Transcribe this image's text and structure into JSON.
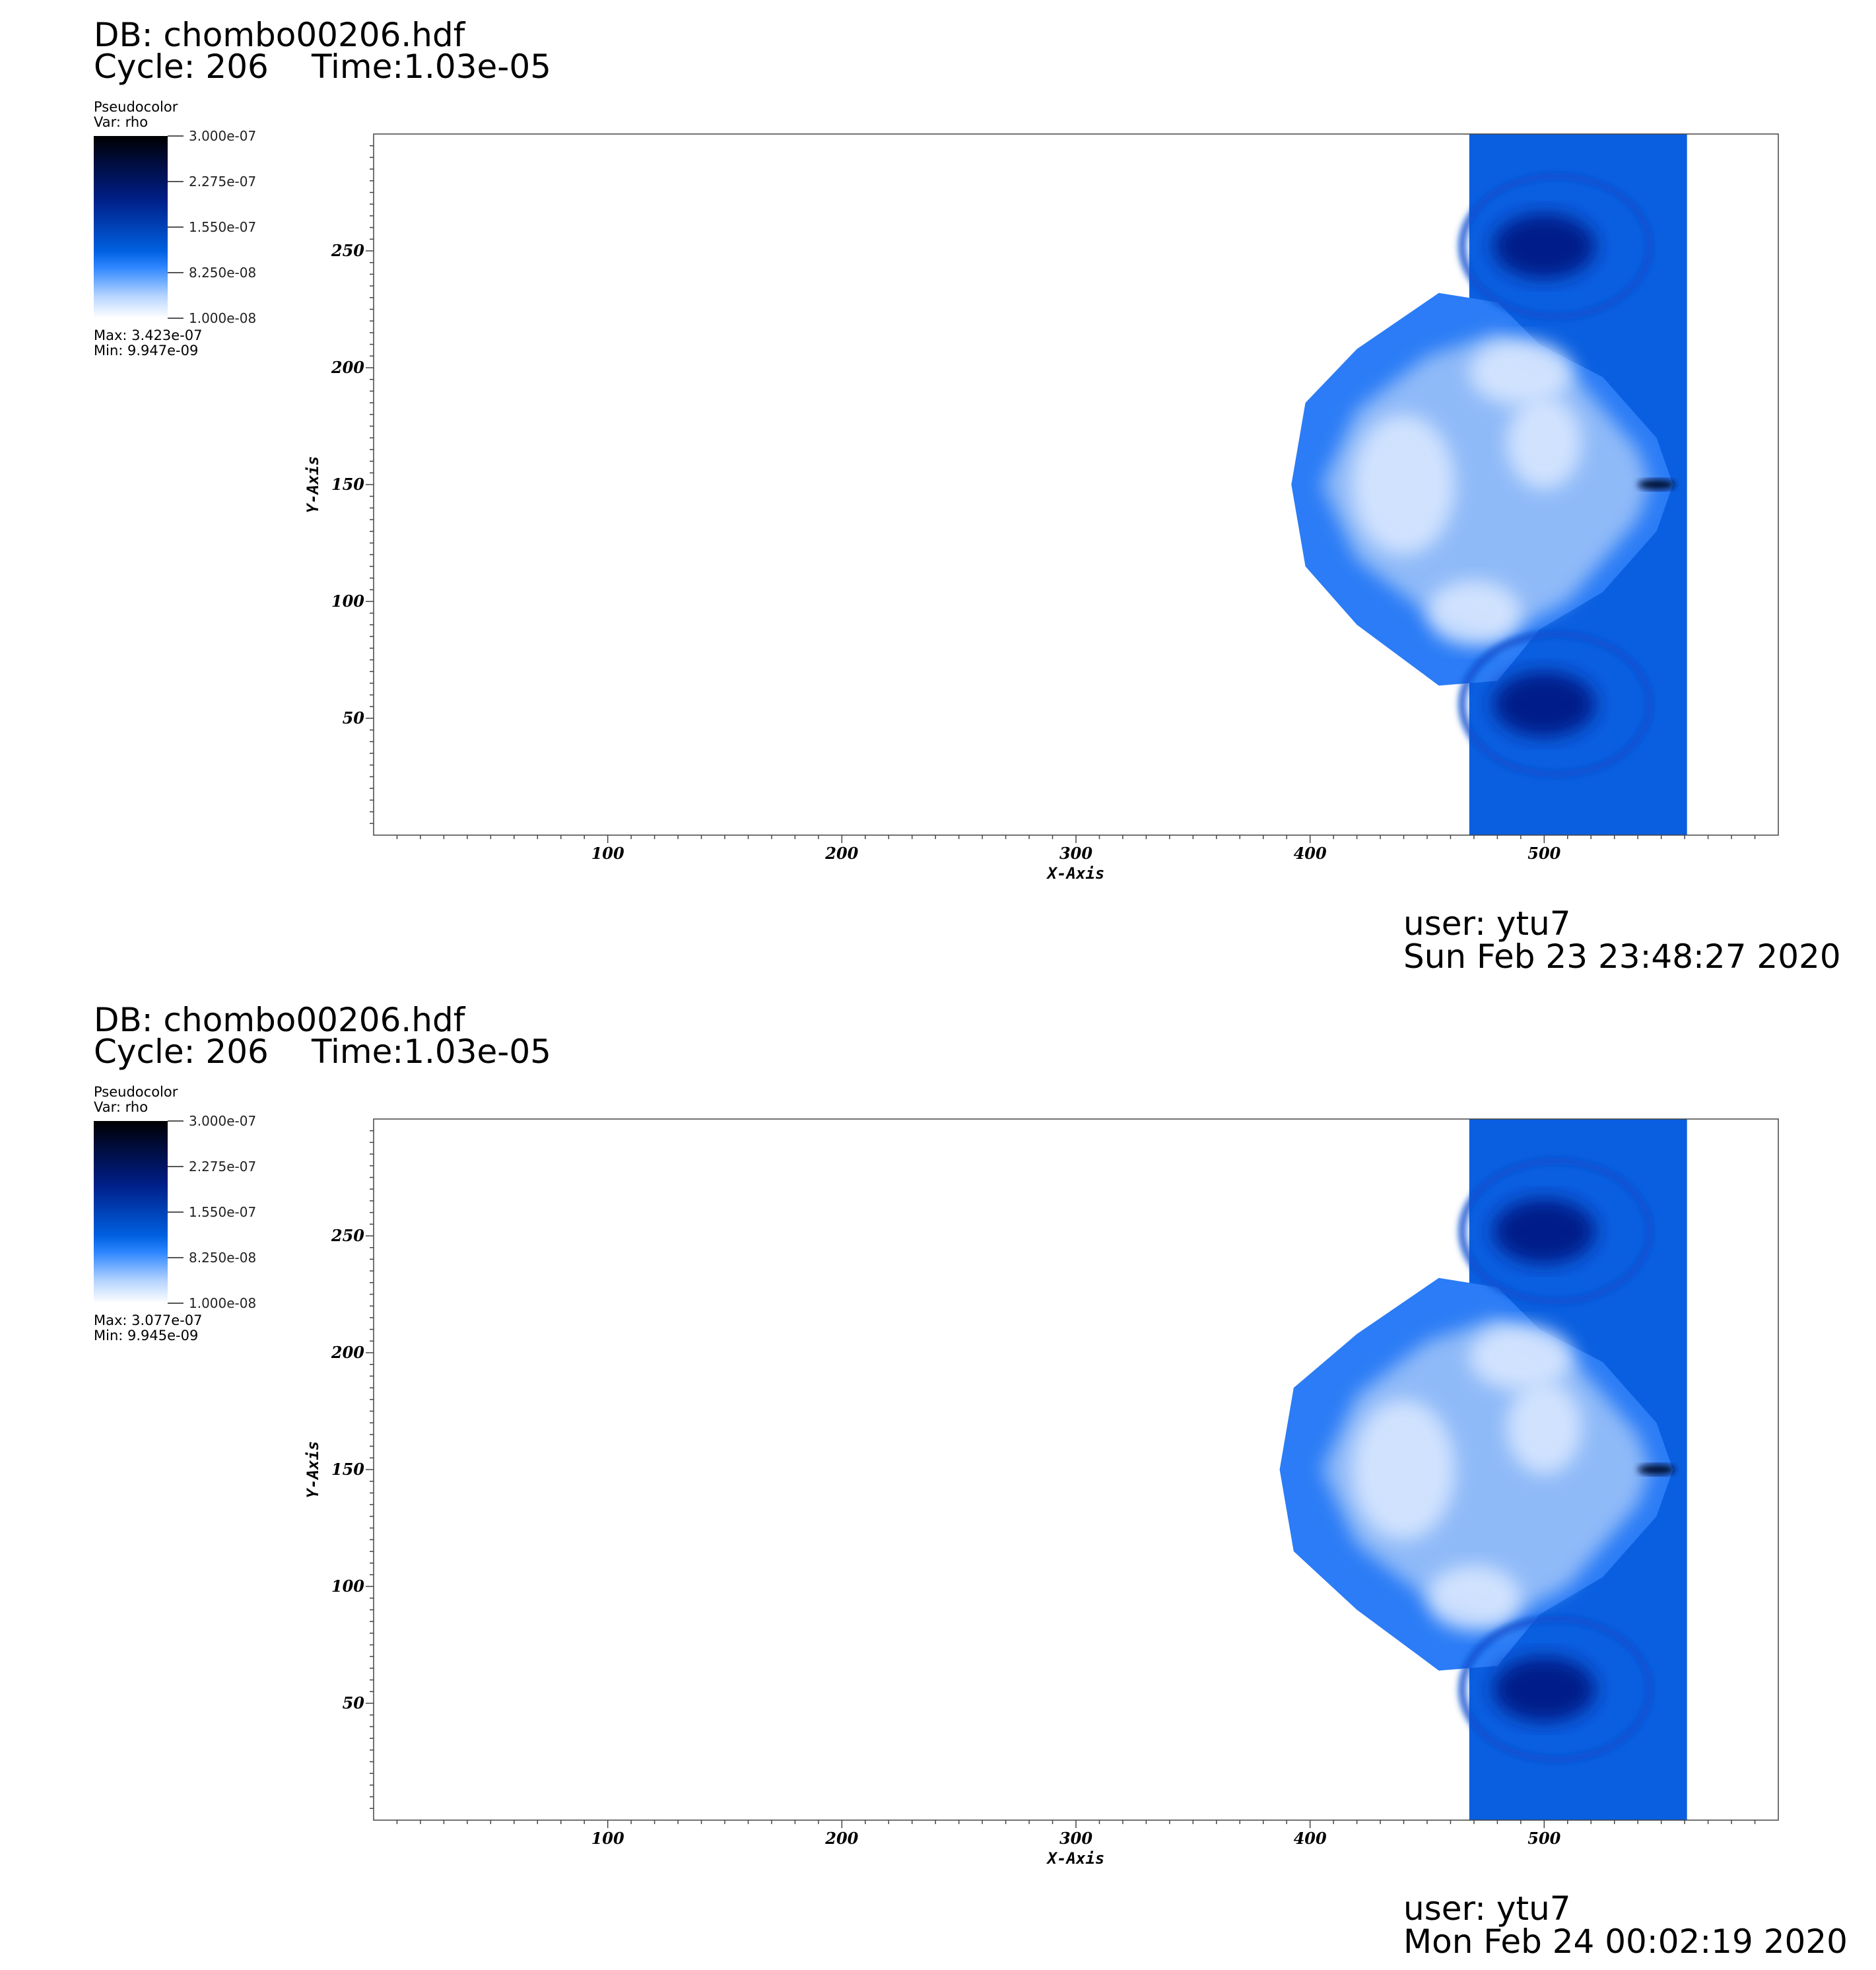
{
  "panels": [
    {
      "db": "DB: chombo00206.hdf",
      "cycle": "Cycle: 206",
      "time": "Time:1.03e-05",
      "legend_title": "Pseudocolor",
      "legend_var": "Var: rho",
      "colorbar_labels": [
        "3.000e-07",
        "2.275e-07",
        "1.550e-07",
        "8.250e-08",
        "1.000e-08"
      ],
      "max_label": "Max:  3.423e-07",
      "min_label": "Min:  9.947e-09",
      "user": "user: ytu7",
      "date": "Sun Feb 23 23:48:27 2020"
    },
    {
      "db": "DB: chombo00206.hdf",
      "cycle": "Cycle: 206",
      "time": "Time:1.03e-05",
      "legend_title": "Pseudocolor",
      "legend_var": "Var: rho",
      "colorbar_labels": [
        "3.000e-07",
        "2.275e-07",
        "1.550e-07",
        "8.250e-08",
        "1.000e-08"
      ],
      "max_label": "Max:  3.077e-07",
      "min_label": "Min:  9.945e-09",
      "user": "user: ytu7",
      "date": "Mon Feb 24 00:02:19 2020"
    }
  ],
  "chart_data": [
    {
      "type": "heatmap",
      "title": "",
      "xlabel": "X-Axis",
      "ylabel": "Y-Axis",
      "xlim": [
        0,
        600
      ],
      "ylim": [
        0,
        300
      ],
      "xticks": [
        100,
        200,
        300,
        400,
        500
      ],
      "yticks": [
        50,
        100,
        150,
        200,
        250
      ],
      "variable": "rho",
      "colorbar": {
        "min": 1e-08,
        "max": 3e-07,
        "ticks": [
          3e-07,
          2.275e-07,
          1.55e-07,
          8.25e-08,
          1e-08
        ],
        "colors": [
          "#ffffff",
          "#2d86ff",
          "#0050d0",
          "#001f88",
          "#000000"
        ]
      },
      "data_max": 3.423e-07,
      "data_min": 9.947e-09,
      "structure": {
        "slab_x": [
          468,
          561
        ],
        "bubble_leftmost_x": 392,
        "center_y": 150
      }
    },
    {
      "type": "heatmap",
      "title": "",
      "xlabel": "X-Axis",
      "ylabel": "Y-Axis",
      "xlim": [
        0,
        600
      ],
      "ylim": [
        0,
        300
      ],
      "xticks": [
        100,
        200,
        300,
        400,
        500
      ],
      "yticks": [
        50,
        100,
        150,
        200,
        250
      ],
      "variable": "rho",
      "colorbar": {
        "min": 1e-08,
        "max": 3e-07,
        "ticks": [
          3e-07,
          2.275e-07,
          1.55e-07,
          8.25e-08,
          1e-08
        ],
        "colors": [
          "#ffffff",
          "#2d86ff",
          "#0050d0",
          "#001f88",
          "#000000"
        ]
      },
      "data_max": 3.077e-07,
      "data_min": 9.945e-09,
      "structure": {
        "slab_x": [
          468,
          561
        ],
        "bubble_leftmost_x": 387,
        "center_y": 150
      }
    }
  ]
}
